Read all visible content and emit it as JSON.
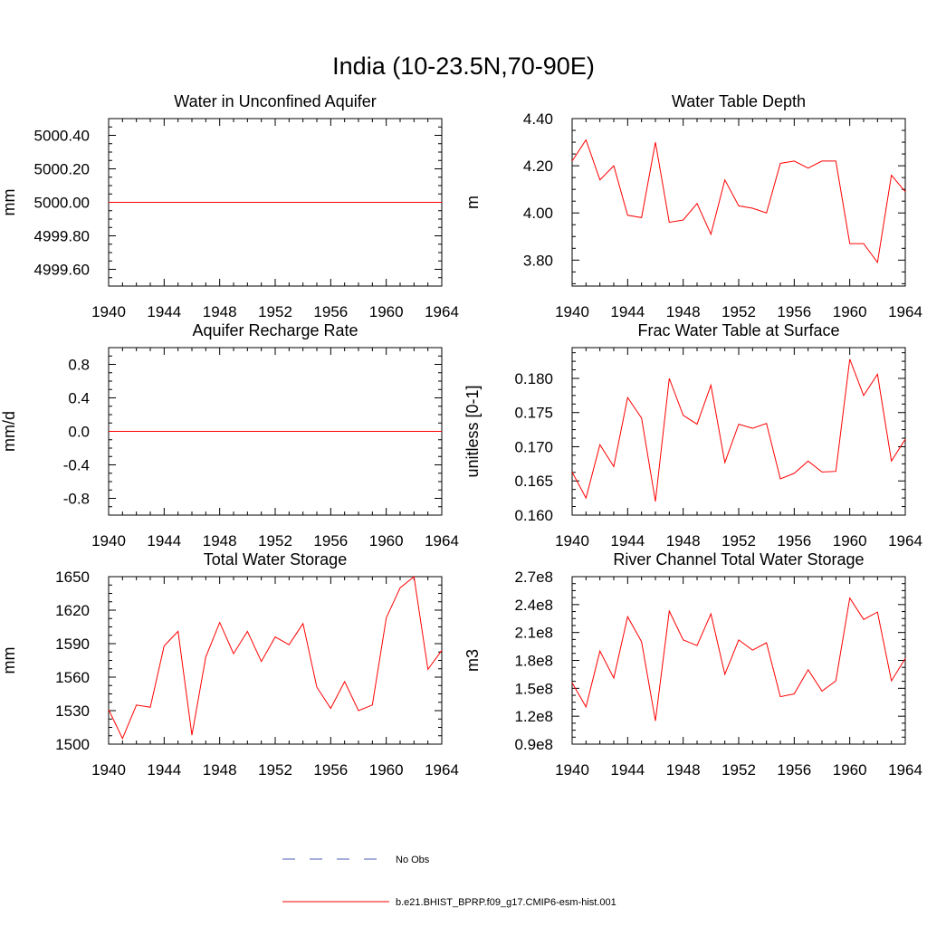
{
  "figure": {
    "title": "India (10-23.5N,70-90E)"
  },
  "legend": {
    "items": [
      {
        "label": "No Obs",
        "color": "#4b5bb0",
        "style": "dashed"
      },
      {
        "label": "b.e21.BHIST_BPRP.f09_g17.CMIP6-esm-hist.001",
        "color": "#ff0000",
        "style": "solid"
      }
    ]
  },
  "chart_data": [
    {
      "type": "line",
      "title": "Water in Unconfined Aquifer",
      "ylabel": "mm",
      "xlim": [
        1940,
        1964
      ],
      "ylim": [
        4999.5,
        5000.5
      ],
      "xticks": [
        "1940",
        "1944",
        "1948",
        "1952",
        "1956",
        "1960",
        "1964"
      ],
      "yticks": [
        "4999.60",
        "4999.80",
        "5000.00",
        "5000.20",
        "5000.40"
      ],
      "ytick_values": [
        4999.6,
        4999.8,
        5000.0,
        5000.2,
        5000.4
      ],
      "series": [
        {
          "color": "#ff0000",
          "x": [
            1940,
            1941,
            1942,
            1943,
            1944,
            1945,
            1946,
            1947,
            1948,
            1949,
            1950,
            1951,
            1952,
            1953,
            1954,
            1955,
            1956,
            1957,
            1958,
            1959,
            1960,
            1961,
            1962,
            1963,
            1964
          ],
          "y": [
            5000,
            5000,
            5000,
            5000,
            5000,
            5000,
            5000,
            5000,
            5000,
            5000,
            5000,
            5000,
            5000,
            5000,
            5000,
            5000,
            5000,
            5000,
            5000,
            5000,
            5000,
            5000,
            5000,
            5000,
            5000
          ]
        }
      ]
    },
    {
      "type": "line",
      "title": "Water Table Depth",
      "ylabel": "m",
      "xlim": [
        1940,
        1964
      ],
      "ylim": [
        3.69,
        4.4
      ],
      "xticks": [
        "1940",
        "1944",
        "1948",
        "1952",
        "1956",
        "1960",
        "1964"
      ],
      "yticks": [
        "3.80",
        "4.00",
        "4.20",
        "4.40"
      ],
      "ytick_values": [
        3.8,
        4.0,
        4.2,
        4.4
      ],
      "series": [
        {
          "color": "#ff0000",
          "x": [
            1940,
            1941,
            1942,
            1943,
            1944,
            1945,
            1946,
            1947,
            1948,
            1949,
            1950,
            1951,
            1952,
            1953,
            1954,
            1955,
            1956,
            1957,
            1958,
            1959,
            1960,
            1961,
            1962,
            1963,
            1964
          ],
          "y": [
            4.22,
            4.31,
            4.14,
            4.2,
            3.99,
            3.98,
            4.3,
            3.96,
            3.97,
            4.04,
            3.91,
            4.14,
            4.03,
            4.02,
            4.0,
            4.21,
            4.22,
            4.19,
            4.22,
            4.22,
            3.87,
            3.87,
            3.79,
            4.16,
            4.09
          ]
        }
      ]
    },
    {
      "type": "line",
      "title": "Aquifer Recharge Rate",
      "ylabel": "mm/d",
      "xlim": [
        1940,
        1964
      ],
      "ylim": [
        -1.0,
        1.0
      ],
      "xticks": [
        "1940",
        "1944",
        "1948",
        "1952",
        "1956",
        "1960",
        "1964"
      ],
      "yticks": [
        "-0.8",
        "-0.4",
        "0.0",
        "0.4",
        "0.8"
      ],
      "ytick_values": [
        -0.8,
        -0.4,
        0.0,
        0.4,
        0.8
      ],
      "series": [
        {
          "color": "#ff0000",
          "x": [
            1940,
            1941,
            1942,
            1943,
            1944,
            1945,
            1946,
            1947,
            1948,
            1949,
            1950,
            1951,
            1952,
            1953,
            1954,
            1955,
            1956,
            1957,
            1958,
            1959,
            1960,
            1961,
            1962,
            1963,
            1964
          ],
          "y": [
            0,
            0,
            0,
            0,
            0,
            0,
            0,
            0,
            0,
            0,
            0,
            0,
            0,
            0,
            0,
            0,
            0,
            0,
            0,
            0,
            0,
            0,
            0,
            0,
            0
          ]
        }
      ]
    },
    {
      "type": "line",
      "title": "Frac Water Table at Surface",
      "ylabel": "unitless [0-1]",
      "xlim": [
        1940,
        1964
      ],
      "ylim": [
        0.16,
        0.1845
      ],
      "xticks": [
        "1940",
        "1944",
        "1948",
        "1952",
        "1956",
        "1960",
        "1964"
      ],
      "yticks": [
        "0.160",
        "0.165",
        "0.170",
        "0.175",
        "0.180"
      ],
      "ytick_values": [
        0.16,
        0.165,
        0.17,
        0.175,
        0.18
      ],
      "series": [
        {
          "color": "#ff0000",
          "x": [
            1940,
            1941,
            1942,
            1943,
            1944,
            1945,
            1946,
            1947,
            1948,
            1949,
            1950,
            1951,
            1952,
            1953,
            1954,
            1955,
            1956,
            1957,
            1958,
            1959,
            1960,
            1961,
            1962,
            1963,
            1964
          ],
          "y": [
            0.1663,
            0.1625,
            0.1703,
            0.1671,
            0.1772,
            0.1742,
            0.162,
            0.18,
            0.1746,
            0.1733,
            0.179,
            0.1677,
            0.1733,
            0.1727,
            0.1734,
            0.1653,
            0.1661,
            0.1679,
            0.1663,
            0.1664,
            0.1828,
            0.1775,
            0.1806,
            0.1679,
            0.1711
          ]
        }
      ]
    },
    {
      "type": "line",
      "title": "Total Water Storage",
      "ylabel": "mm",
      "xlim": [
        1940,
        1964
      ],
      "ylim": [
        1500,
        1650
      ],
      "xticks": [
        "1940",
        "1944",
        "1948",
        "1952",
        "1956",
        "1960",
        "1964"
      ],
      "yticks": [
        "1500",
        "1530",
        "1560",
        "1590",
        "1620",
        "1650"
      ],
      "ytick_values": [
        1500,
        1530,
        1560,
        1590,
        1620,
        1650
      ],
      "series": [
        {
          "color": "#ff0000",
          "x": [
            1940,
            1941,
            1942,
            1943,
            1944,
            1945,
            1946,
            1947,
            1948,
            1949,
            1950,
            1951,
            1952,
            1953,
            1954,
            1955,
            1956,
            1957,
            1958,
            1959,
            1960,
            1961,
            1962,
            1963,
            1964
          ],
          "y": [
            1531,
            1505,
            1535,
            1533,
            1588,
            1601,
            1508,
            1578,
            1609,
            1581,
            1601,
            1574,
            1596,
            1589,
            1608,
            1551,
            1532,
            1556,
            1530,
            1535,
            1613,
            1640,
            1650,
            1567,
            1584
          ]
        }
      ]
    },
    {
      "type": "line",
      "title": "River Channel Total Water Storage",
      "ylabel": "m3",
      "xlim": [
        1940,
        1964
      ],
      "ylim": [
        90000000.0,
        270000000.0
      ],
      "xticks": [
        "1940",
        "1944",
        "1948",
        "1952",
        "1956",
        "1960",
        "1964"
      ],
      "yticks": [
        "0.9e8",
        "1.2e8",
        "1.5e8",
        "1.8e8",
        "2.1e8",
        "2.4e8",
        "2.7e8"
      ],
      "ytick_values": [
        90000000.0,
        120000000.0,
        150000000.0,
        180000000.0,
        210000000.0,
        240000000.0,
        270000000.0
      ],
      "series": [
        {
          "color": "#ff0000",
          "x": [
            1940,
            1941,
            1942,
            1943,
            1944,
            1945,
            1946,
            1947,
            1948,
            1949,
            1950,
            1951,
            1952,
            1953,
            1954,
            1955,
            1956,
            1957,
            1958,
            1959,
            1960,
            1961,
            1962,
            1963,
            1964
          ],
          "y": [
            156000000.0,
            130000000.0,
            190000000.0,
            161000000.0,
            227000000.0,
            200000000.0,
            115000000.0,
            233000000.0,
            202000000.0,
            196000000.0,
            230000000.0,
            165000000.0,
            202000000.0,
            191000000.0,
            199000000.0,
            141000000.0,
            144000000.0,
            170000000.0,
            147000000.0,
            158000000.0,
            247000000.0,
            224000000.0,
            232000000.0,
            158000000.0,
            182000000.0
          ]
        }
      ]
    }
  ]
}
